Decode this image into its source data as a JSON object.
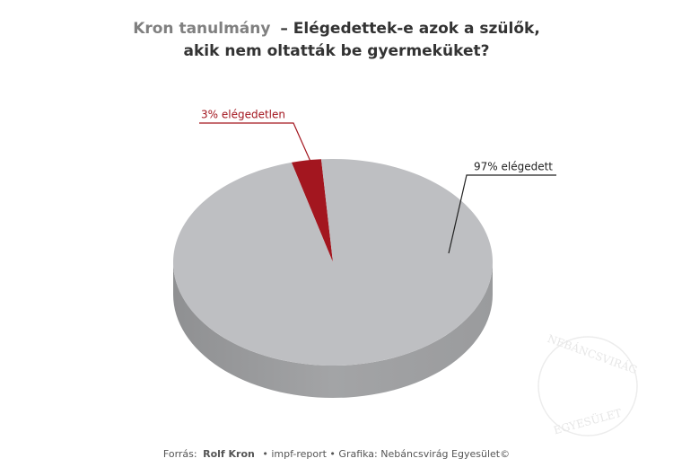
{
  "chart_data": {
    "type": "pie",
    "title": {
      "source": "Kron tanulmány",
      "line1": "– Elégedettek-e azok a szülők,",
      "line2": "akik nem oltatták be gyermeküket?"
    },
    "values": [
      3,
      97
    ],
    "value_labels": [
      "3% elégedetlen",
      "97% elégedett"
    ],
    "colors": [
      "#a3161f",
      "#bebfc2"
    ],
    "label_colors": [
      "#a3161f",
      "#222222"
    ],
    "footer": {
      "label": "Forrás:",
      "author": "Rolf Kron",
      "rest": "• impf-report • Grafika: Nebáncsvirág Egyesület©"
    },
    "watermark": [
      "NEBÁNCSVIRÁG",
      "EGYESÜLET"
    ]
  }
}
